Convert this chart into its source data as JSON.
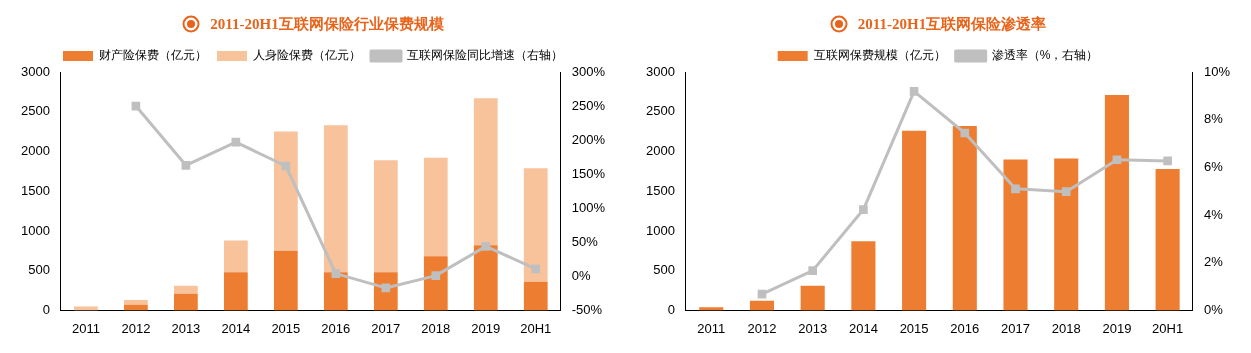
{
  "chart_data": [
    {
      "type": "bar",
      "title": "2011-20H1互联网保险行业保费规模",
      "categories": [
        "2011",
        "2012",
        "2013",
        "2014",
        "2015",
        "2016",
        "2017",
        "2018",
        "2019",
        "20H1"
      ],
      "stacked": true,
      "legend": "top",
      "marker": "square",
      "grid": false,
      "series": [
        {
          "name": "财产险保费（亿元）",
          "color": "#ed7d31",
          "values": [
            0,
            70,
            210,
            480,
            750,
            480,
            480,
            680,
            820,
            360
          ]
        },
        {
          "name": "人身险保费（亿元）",
          "color": "#f8c29b",
          "values": [
            50,
            60,
            100,
            400,
            1500,
            1850,
            1410,
            1240,
            1850,
            1430
          ]
        },
        {
          "name": "互联网保险同比增速（右轴）",
          "type": "line",
          "axis": "y2",
          "color": "#bfbfbf",
          "values": [
            null,
            250,
            163,
            197,
            162,
            4,
            -17,
            1,
            44,
            11
          ]
        }
      ],
      "ylim": [
        0,
        3000
      ],
      "yticks": [
        0,
        500,
        1000,
        1500,
        2000,
        2500,
        3000
      ],
      "y2lim": [
        -50,
        300
      ],
      "y2ticks": [
        {
          "value": -50,
          "label": "-50%"
        },
        {
          "value": 0,
          "label": "0%"
        },
        {
          "value": 50,
          "label": "50%"
        },
        {
          "value": 100,
          "label": "100%"
        },
        {
          "value": 150,
          "label": "150%"
        },
        {
          "value": 200,
          "label": "200%"
        },
        {
          "value": 250,
          "label": "250%"
        },
        {
          "value": 300,
          "label": "300%"
        }
      ]
    },
    {
      "type": "bar",
      "title": "2011-20H1互联网保险渗透率",
      "categories": [
        "2011",
        "2012",
        "2013",
        "2014",
        "2015",
        "2016",
        "2017",
        "2018",
        "2019",
        "20H1"
      ],
      "legend": "top",
      "marker": "square",
      "grid": false,
      "series": [
        {
          "name": "互联网保费规模（亿元）",
          "color": "#ed7d31",
          "values": [
            40,
            120,
            310,
            870,
            2260,
            2320,
            1900,
            1910,
            2710,
            1780
          ]
        },
        {
          "name": "渗透率（%，右轴）",
          "type": "line",
          "axis": "y2",
          "color": "#bfbfbf",
          "values": [
            null,
            0.68,
            1.67,
            4.23,
            9.19,
            7.44,
            5.1,
            4.98,
            6.32,
            6.27
          ]
        }
      ],
      "ylim": [
        0,
        3000
      ],
      "yticks": [
        0,
        500,
        1000,
        1500,
        2000,
        2500,
        3000
      ],
      "y2lim": [
        0,
        10
      ],
      "y2ticks": [
        {
          "value": 0,
          "label": "0%"
        },
        {
          "value": 2,
          "label": "2%"
        },
        {
          "value": 4,
          "label": "4%"
        },
        {
          "value": 6,
          "label": "6%"
        },
        {
          "value": 8,
          "label": "8%"
        },
        {
          "value": 10,
          "label": "10%"
        }
      ]
    }
  ]
}
